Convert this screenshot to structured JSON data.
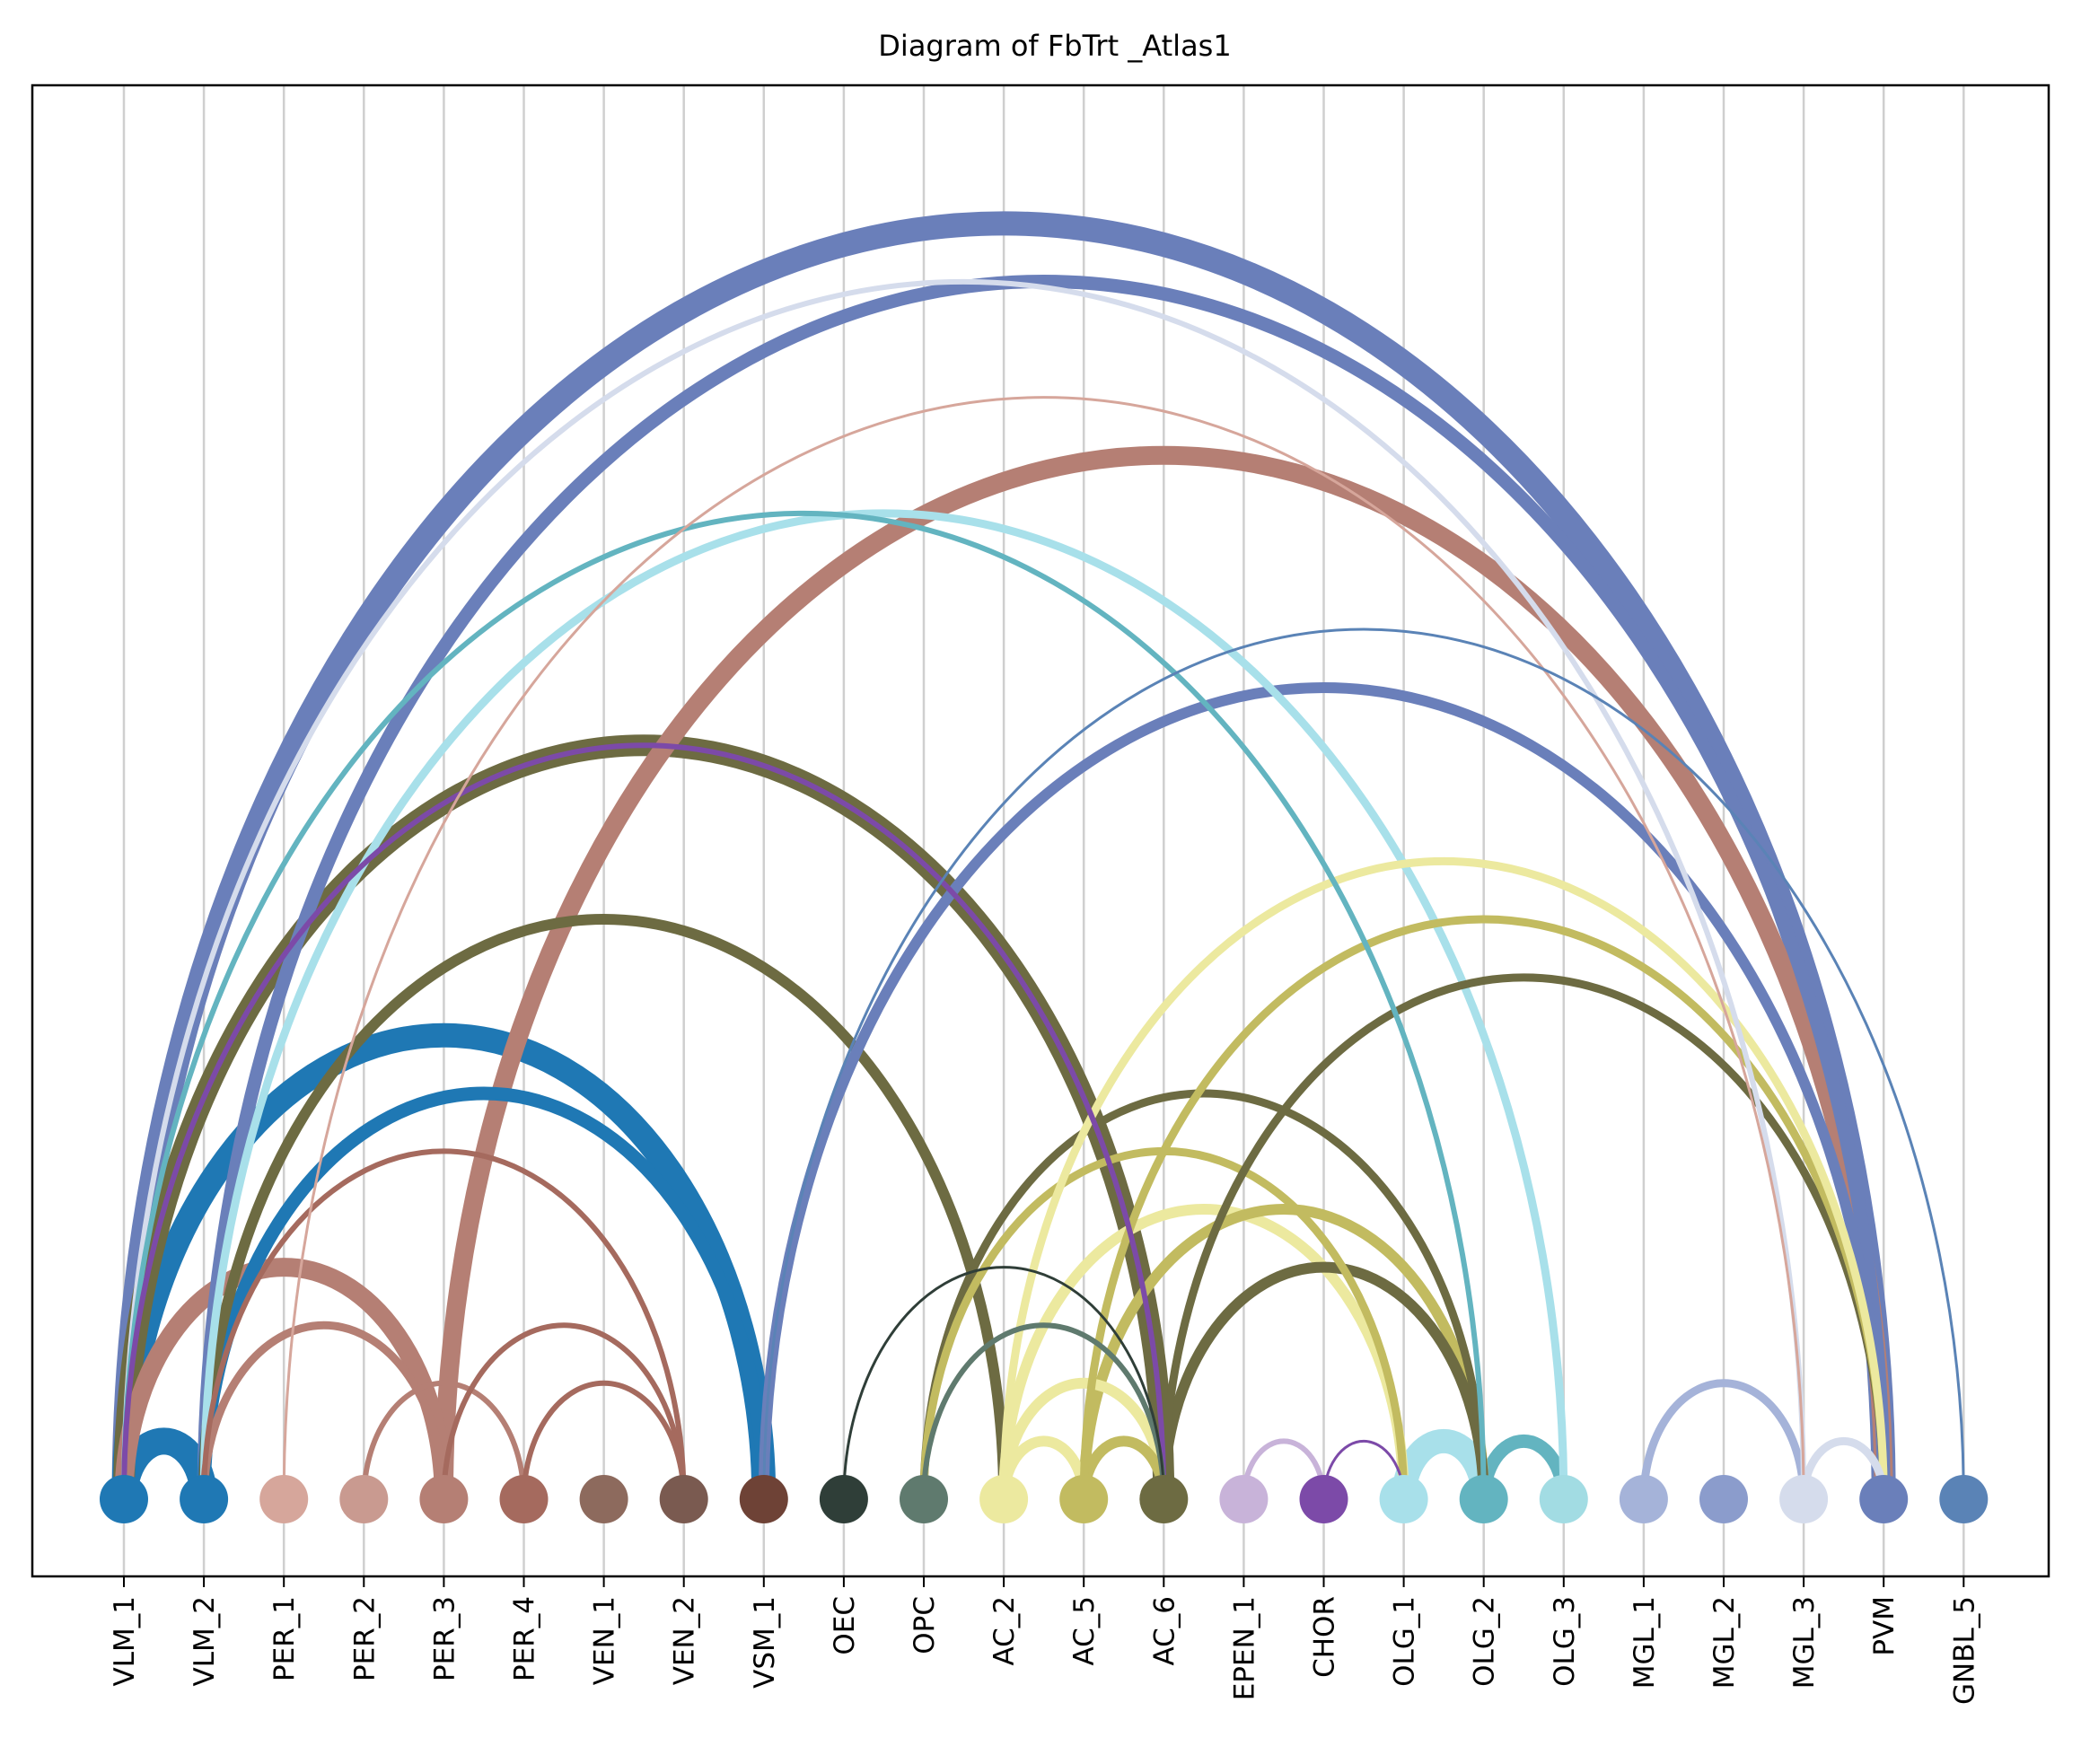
{
  "chart_data": {
    "type": "arc-diagram",
    "title": "Diagram of FbTrt _Atlas1",
    "xlabel": "",
    "ylabel": "",
    "grid": "vertical lines at each node",
    "nodes": [
      {
        "name": "VLM_1",
        "color": "#1f78b4"
      },
      {
        "name": "VLM_2",
        "color": "#1f78b4"
      },
      {
        "name": "PER_1",
        "color": "#d6a69b"
      },
      {
        "name": "PER_2",
        "color": "#c99a90"
      },
      {
        "name": "PER_3",
        "color": "#b57f74"
      },
      {
        "name": "PER_4",
        "color": "#a56a5e"
      },
      {
        "name": "VEN_1",
        "color": "#8d6a5d"
      },
      {
        "name": "VEN_2",
        "color": "#7a5a50"
      },
      {
        "name": "VSM_1",
        "color": "#6e4236"
      },
      {
        "name": "OEC",
        "color": "#2f3e38"
      },
      {
        "name": "OPC",
        "color": "#5f7a6e"
      },
      {
        "name": "AC_2",
        "color": "#ece99f"
      },
      {
        "name": "AC_5",
        "color": "#c2bb60"
      },
      {
        "name": "AC_6",
        "color": "#6d6b42"
      },
      {
        "name": "EPEN_1",
        "color": "#c8b3d9"
      },
      {
        "name": "CHOR",
        "color": "#7c4aa8"
      },
      {
        "name": "OLG_1",
        "color": "#a8e0ea"
      },
      {
        "name": "OLG_2",
        "color": "#63b4c0"
      },
      {
        "name": "OLG_3",
        "color": "#a2dce3"
      },
      {
        "name": "MGL_1",
        "color": "#a5b3d9"
      },
      {
        "name": "MGL_2",
        "color": "#8b9ccc"
      },
      {
        "name": "MGL_3",
        "color": "#d5dcec"
      },
      {
        "name": "PVM",
        "color": "#6a7fba"
      },
      {
        "name": "GNBL_5",
        "color": "#5a83b6"
      }
    ],
    "links": [
      {
        "source": "VLM_1",
        "target": "PVM",
        "weight": 9,
        "color": "#6a7fba"
      },
      {
        "source": "VLM_2",
        "target": "PVM",
        "weight": 5,
        "color": "#6a7fba"
      },
      {
        "source": "VLM_1",
        "target": "MGL_3",
        "weight": 2,
        "color": "#d5dcec"
      },
      {
        "source": "PER_1",
        "target": "MGL_3",
        "weight": 1,
        "color": "#d6a69b"
      },
      {
        "source": "PER_3",
        "target": "PVM",
        "weight": 7,
        "color": "#b57f74"
      },
      {
        "source": "VLM_1",
        "target": "OLG_2",
        "weight": 2,
        "color": "#63b4c0"
      },
      {
        "source": "VLM_2",
        "target": "OLG_3",
        "weight": 3,
        "color": "#a8e0ea"
      },
      {
        "source": "VLM_1",
        "target": "AC_6",
        "weight": 2,
        "color": "#7c4aa8"
      },
      {
        "source": "VLM_1",
        "target": "AC_6",
        "weight": 8,
        "color": "#6d6b42"
      },
      {
        "source": "VLM_2",
        "target": "AC_2",
        "weight": 4,
        "color": "#6d6b42"
      },
      {
        "source": "VLM_1",
        "target": "VSM_1",
        "weight": 9,
        "color": "#1f78b4"
      },
      {
        "source": "VLM_2",
        "target": "VSM_1",
        "weight": 5,
        "color": "#1f78b4"
      },
      {
        "source": "VLM_1",
        "target": "VLM_2",
        "weight": 10,
        "color": "#1f78b4"
      },
      {
        "source": "VLM_1",
        "target": "PER_3",
        "weight": 7,
        "color": "#b57f74"
      },
      {
        "source": "VLM_2",
        "target": "PER_3",
        "weight": 3,
        "color": "#b57f74"
      },
      {
        "source": "PER_2",
        "target": "PER_4",
        "weight": 2,
        "color": "#b57f74"
      },
      {
        "source": "PER_3",
        "target": "VEN_2",
        "weight": 2,
        "color": "#a56a5e"
      },
      {
        "source": "VLM_2",
        "target": "VEN_2",
        "weight": 2,
        "color": "#a56a5e"
      },
      {
        "source": "PER_4",
        "target": "VEN_2",
        "weight": 2,
        "color": "#a56a5e"
      },
      {
        "source": "OPC",
        "target": "OLG_2",
        "weight": 3,
        "color": "#6d6b42"
      },
      {
        "source": "OPC",
        "target": "OLG_1",
        "weight": 3,
        "color": "#c2bb60"
      },
      {
        "source": "AC_2",
        "target": "OLG_1",
        "weight": 4,
        "color": "#ece99f"
      },
      {
        "source": "AC_5",
        "target": "OLG_2",
        "weight": 4,
        "color": "#c2bb60"
      },
      {
        "source": "AC_6",
        "target": "OLG_2",
        "weight": 4,
        "color": "#6d6b42"
      },
      {
        "source": "AC_6",
        "target": "PVM",
        "weight": 3,
        "color": "#6d6b42"
      },
      {
        "source": "AC_5",
        "target": "PVM",
        "weight": 3,
        "color": "#c2bb60"
      },
      {
        "source": "AC_2",
        "target": "PVM",
        "weight": 3,
        "color": "#ece99f"
      },
      {
        "source": "VSM_1",
        "target": "GNBL_5",
        "weight": 1,
        "color": "#5a83b6"
      },
      {
        "source": "VSM_1",
        "target": "PVM",
        "weight": 4,
        "color": "#6a7fba"
      },
      {
        "source": "OLG_1",
        "target": "OLG_2",
        "weight": 9,
        "color": "#a8e0ea"
      },
      {
        "source": "OLG_2",
        "target": "OLG_3",
        "weight": 5,
        "color": "#63b4c0"
      },
      {
        "source": "MGL_1",
        "target": "MGL_3",
        "weight": 3,
        "color": "#a5b3d9"
      },
      {
        "source": "MGL_3",
        "target": "PVM",
        "weight": 3,
        "color": "#d5dcec"
      },
      {
        "source": "EPEN_1",
        "target": "CHOR",
        "weight": 2,
        "color": "#c8b3d9"
      },
      {
        "source": "CHOR",
        "target": "OLG_1",
        "weight": 1,
        "color": "#7c4aa8"
      },
      {
        "source": "AC_2",
        "target": "AC_6",
        "weight": 4,
        "color": "#ece99f"
      },
      {
        "source": "AC_5",
        "target": "AC_6",
        "weight": 4,
        "color": "#c2bb60"
      },
      {
        "source": "AC_2",
        "target": "AC_5",
        "weight": 4,
        "color": "#ece99f"
      },
      {
        "source": "OEC",
        "target": "AC_6",
        "weight": 1,
        "color": "#2f3e38"
      },
      {
        "source": "OPC",
        "target": "AC_6",
        "weight": 2,
        "color": "#5f7a6e"
      }
    ]
  }
}
